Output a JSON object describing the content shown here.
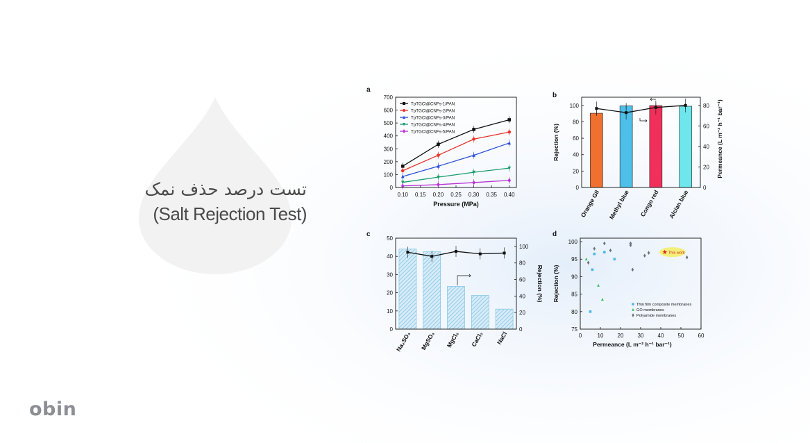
{
  "page": {
    "title_fa": "تست درصد حذف نمک",
    "title_en": "(Salt Rejection Test)",
    "logo": "obin",
    "colors": {
      "title": "#4a4a4a",
      "logo": "#8b8f93"
    }
  },
  "chart_data": [
    {
      "panel": "a",
      "type": "line",
      "xlabel": "Pressure (MPa)",
      "ylabel": "",
      "x": [
        0.1,
        0.2,
        0.3,
        0.4
      ],
      "xlim": [
        0.08,
        0.42
      ],
      "xticks": [
        "0.10",
        "0.15",
        "0.20",
        "0.25",
        "0.30",
        "0.35",
        "0.40"
      ],
      "ylim": [
        0,
        700
      ],
      "yticks": [
        "0",
        "100",
        "200",
        "300",
        "400",
        "500",
        "600",
        "700"
      ],
      "legend_position": "top-left",
      "series": [
        {
          "name": "TpTGCl@CNFs-1/PAN",
          "color": "#111111",
          "marker": "square",
          "values": [
            165,
            335,
            450,
            525
          ]
        },
        {
          "name": "TpTGCl@CNFs-2/PAN",
          "color": "#e8332a",
          "marker": "circle",
          "values": [
            130,
            250,
            375,
            430
          ]
        },
        {
          "name": "TpTGCl@CNFs-3/PAN",
          "color": "#2b4fd6",
          "marker": "triangle",
          "values": [
            85,
            165,
            250,
            345
          ]
        },
        {
          "name": "TpTGCl@CNFs-4/PAN",
          "color": "#1c9c6b",
          "marker": "triangle-down",
          "values": [
            40,
            80,
            118,
            150
          ]
        },
        {
          "name": "TpTGCl@CNFs-5/PAN",
          "color": "#b832d6",
          "marker": "diamond",
          "values": [
            12,
            22,
            38,
            55
          ]
        }
      ]
    },
    {
      "panel": "b",
      "type": "bar",
      "ylabel": "Rejection (%)",
      "y2label": "Permeance (L m⁻² h⁻¹ bar⁻¹)",
      "categories": [
        "Orange GII",
        "Methyl blue",
        "Congo red",
        "Alcian blue"
      ],
      "ylim": [
        0,
        110
      ],
      "yticks": [
        "0",
        "20",
        "40",
        "60",
        "80",
        "100"
      ],
      "y2lim": [
        0,
        88
      ],
      "y2ticks": [
        "0",
        "20",
        "40",
        "60",
        "80"
      ],
      "bar_colors": [
        "#f07030",
        "#4dbfe8",
        "#f0305a",
        "#6ee6ec"
      ],
      "values": [
        90.5,
        99.5,
        99.8,
        99.0
      ],
      "line_values": [
        77,
        73,
        78,
        80
      ]
    },
    {
      "panel": "c",
      "type": "bar",
      "ylabel": "",
      "y2label": "Rejection (%)",
      "categories": [
        "Na₂SO₄",
        "MgSO₄",
        "MgCl₂",
        "CaCl₂",
        "NaCl"
      ],
      "ylim": [
        0,
        50
      ],
      "yticks": [
        "0",
        "10",
        "20",
        "30",
        "40",
        "50"
      ],
      "y2lim": [
        0,
        110
      ],
      "y2ticks": [
        "0",
        "20",
        "40",
        "60",
        "80",
        "100"
      ],
      "bar_color": "#7ec3e3",
      "values": [
        44,
        42.5,
        23.5,
        18.5,
        11
      ],
      "line_values": [
        93,
        88,
        94,
        91,
        92
      ]
    },
    {
      "panel": "d",
      "type": "scatter",
      "xlabel": "Permeance (L m⁻² h⁻¹ bar⁻¹)",
      "ylabel": "Rejection (%)",
      "xlim": [
        0,
        60
      ],
      "xticks": [
        "0",
        "10",
        "20",
        "30",
        "40",
        "50",
        "60"
      ],
      "ylim": [
        75,
        101
      ],
      "yticks": [
        "75",
        "80",
        "85",
        "90",
        "95",
        "100"
      ],
      "legend_position": "bottom-right",
      "series": [
        {
          "name": "Thin film composite membranes",
          "color": "#4ab8e8",
          "marker": "square",
          "points": [
            [
              6,
              92
            ],
            [
              7,
              96.5
            ],
            [
              12,
              97
            ],
            [
              17,
              95
            ],
            [
              5,
              80
            ]
          ]
        },
        {
          "name": "GO membranes",
          "color": "#2ebd55",
          "marker": "triangle",
          "points": [
            [
              3,
              95
            ],
            [
              9,
              87.5
            ],
            [
              11,
              83.5
            ]
          ]
        },
        {
          "name": "Polyamide membranes",
          "color": "#6b7078",
          "marker": "diamond",
          "points": [
            [
              4,
              94
            ],
            [
              7,
              98
            ],
            [
              12,
              99.5
            ],
            [
              15,
              97.5
            ],
            [
              25,
              99.5
            ],
            [
              25,
              99
            ],
            [
              26,
              92
            ],
            [
              32,
              96
            ],
            [
              34,
              96.8
            ],
            [
              53,
              95.5
            ]
          ]
        }
      ],
      "annotation": {
        "label": "This work",
        "x": 42,
        "y": 97,
        "color": "#d42020",
        "halo": "#f4ef7a"
      }
    }
  ]
}
